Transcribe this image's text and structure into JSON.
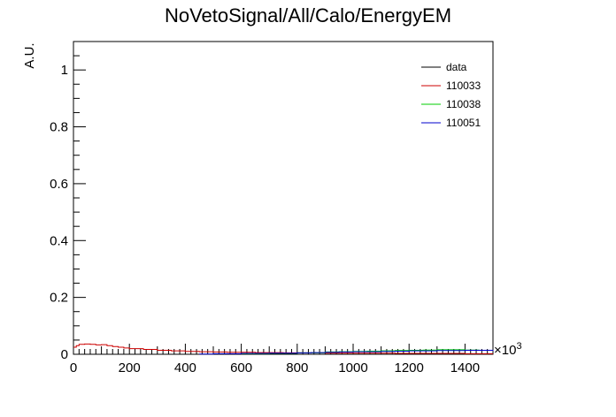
{
  "chart_data": {
    "type": "line",
    "title": "NoVetoSignal/All/Calo/EnergyEM",
    "xlabel": "",
    "ylabel": "A.U.",
    "x_multiplier": "×10",
    "x_multiplier_exp": "3",
    "xlim": [
      0,
      1500
    ],
    "ylim": [
      0,
      1.1
    ],
    "grid": false,
    "legend_position": "top-right",
    "x_ticks": [
      {
        "value": 0,
        "label": "0"
      },
      {
        "value": 200,
        "label": "200"
      },
      {
        "value": 400,
        "label": "400"
      },
      {
        "value": 600,
        "label": "600"
      },
      {
        "value": 800,
        "label": "800"
      },
      {
        "value": 1000,
        "label": "1000"
      },
      {
        "value": 1200,
        "label": "1200"
      },
      {
        "value": 1400,
        "label": "1400"
      }
    ],
    "y_ticks": [
      {
        "value": 0,
        "label": "0"
      },
      {
        "value": 0.2,
        "label": "0.2"
      },
      {
        "value": 0.4,
        "label": "0.4"
      },
      {
        "value": 0.6,
        "label": "0.6"
      },
      {
        "value": 0.8,
        "label": "0.8"
      },
      {
        "value": 1,
        "label": "1"
      }
    ],
    "series": [
      {
        "name": "data",
        "color": "#000000",
        "x": [
          0,
          1500
        ],
        "values": [
          0,
          0
        ]
      },
      {
        "name": "110033",
        "color": "#cc0000",
        "x": [
          0,
          10,
          20,
          40,
          60,
          80,
          100,
          120,
          140,
          160,
          180,
          200,
          250,
          300,
          350,
          400,
          450,
          500,
          550,
          600,
          650,
          700,
          750,
          800,
          850,
          900,
          950,
          1000,
          1050,
          1100,
          1150,
          1200,
          1250,
          1300,
          1350,
          1400,
          1450,
          1500
        ],
        "values": [
          0.025,
          0.03,
          0.035,
          0.036,
          0.035,
          0.033,
          0.034,
          0.03,
          0.027,
          0.025,
          0.022,
          0.02,
          0.017,
          0.014,
          0.012,
          0.01,
          0.009,
          0.008,
          0.007,
          0.007,
          0.006,
          0.006,
          0.005,
          0.005,
          0.005,
          0.004,
          0.004,
          0.004,
          0.004,
          0.004,
          0.003,
          0.003,
          0.003,
          0.003,
          0.003,
          0.002,
          0.002,
          0.002
        ]
      },
      {
        "name": "110038",
        "color": "#00cc00",
        "x": [
          600,
          700,
          800,
          900,
          950,
          1000,
          1050,
          1100,
          1150,
          1200,
          1250,
          1300,
          1350,
          1400,
          1450,
          1500
        ],
        "values": [
          0.002,
          0.003,
          0.005,
          0.008,
          0.009,
          0.01,
          0.011,
          0.012,
          0.013,
          0.014,
          0.015,
          0.016,
          0.016,
          0.015,
          0.014,
          0.013
        ]
      },
      {
        "name": "110051",
        "color": "#0000cc",
        "x": [
          450,
          500,
          550,
          600,
          650,
          700,
          750,
          800,
          850,
          900,
          950,
          1000,
          1050,
          1100,
          1150,
          1200,
          1250,
          1300,
          1350,
          1400,
          1450,
          1500
        ],
        "values": [
          0.001,
          0.002,
          0.002,
          0.003,
          0.003,
          0.004,
          0.004,
          0.005,
          0.006,
          0.007,
          0.008,
          0.009,
          0.009,
          0.01,
          0.011,
          0.012,
          0.012,
          0.013,
          0.013,
          0.014,
          0.014,
          0.012
        ]
      }
    ]
  }
}
